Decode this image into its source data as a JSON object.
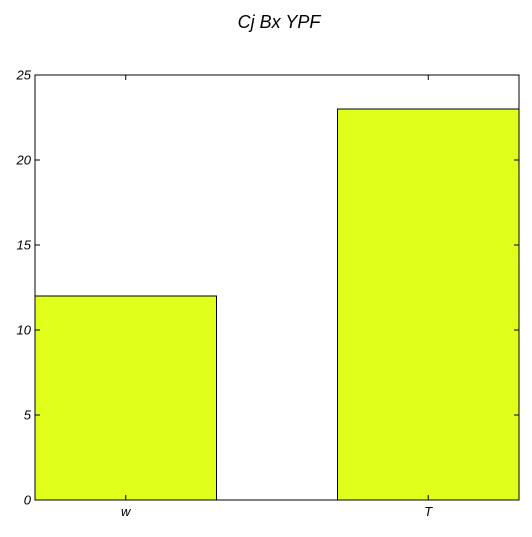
{
  "chart_data": {
    "type": "bar",
    "title": "Cj Bx YPF",
    "categories": [
      "w",
      "T"
    ],
    "values": [
      12,
      23
    ],
    "xlabel": "",
    "ylabel": "",
    "ylim": [
      0,
      25
    ],
    "yticks": [
      0,
      5,
      10,
      15,
      20,
      25
    ],
    "grid": false,
    "bar_color": "#e0ff1a",
    "edge_color": "#000000"
  }
}
